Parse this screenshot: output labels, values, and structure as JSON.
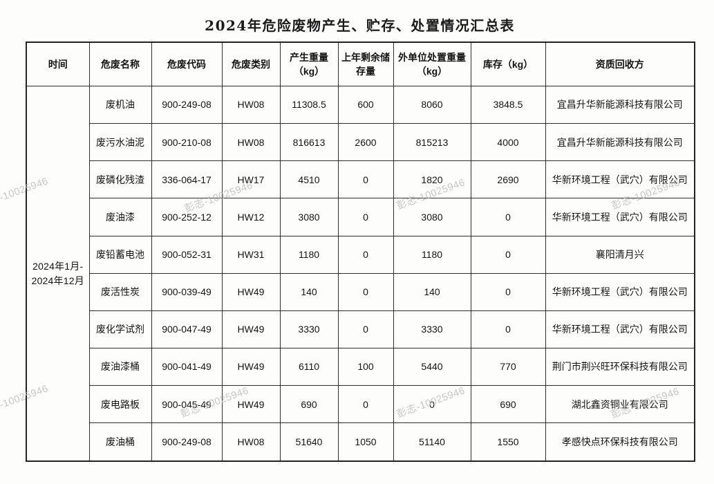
{
  "page": {
    "title": "2024年危险废物产生、贮存、处置情况汇总表",
    "watermark_text": "彭志-10025946"
  },
  "colors": {
    "background": "#fdfdfc",
    "border": "#2d2d2d",
    "text": "#141414",
    "watermark": "#b9b9b9"
  },
  "table": {
    "headers": [
      "时间",
      "危废名称",
      "危废代码",
      "危废类别",
      "产生重量\n（kg）",
      "上年剩余储存量",
      "外单位处置重量\n（kg）",
      "库存（kg）",
      "资质回收方"
    ],
    "time_period": "2024年1月-\n2024年12月",
    "rows": [
      {
        "name": "废机油",
        "code": "900-249-08",
        "category": "HW08",
        "produced": "11308.5",
        "prev_storage": "600",
        "disposed": "8060",
        "stock": "3848.5",
        "recycler": "宜昌升华新能源科技有限公司"
      },
      {
        "name": "废污水油泥",
        "code": "900-210-08",
        "category": "HW08",
        "produced": "816613",
        "prev_storage": "2600",
        "disposed": "815213",
        "stock": "4000",
        "recycler": "宜昌升华新能源科技有限公司"
      },
      {
        "name": "废磷化残渣",
        "code": "336-064-17",
        "category": "HW17",
        "produced": "4510",
        "prev_storage": "0",
        "disposed": "1820",
        "stock": "2690",
        "recycler": "华新环境工程（武穴）有限公司"
      },
      {
        "name": "废油漆",
        "code": "900-252-12",
        "category": "HW12",
        "produced": "3080",
        "prev_storage": "0",
        "disposed": "3080",
        "stock": "0",
        "recycler": "华新环境工程（武穴）有限公司"
      },
      {
        "name": "废铅蓄电池",
        "code": "900-052-31",
        "category": "HW31",
        "produced": "1180",
        "prev_storage": "0",
        "disposed": "1180",
        "stock": "0",
        "recycler": "襄阳清月兴"
      },
      {
        "name": "废活性炭",
        "code": "900-039-49",
        "category": "HW49",
        "produced": "140",
        "prev_storage": "0",
        "disposed": "140",
        "stock": "0",
        "recycler": "华新环境工程（武穴）有限公司"
      },
      {
        "name": "废化学试剂",
        "code": "900-047-49",
        "category": "HW49",
        "produced": "3330",
        "prev_storage": "0",
        "disposed": "3330",
        "stock": "0",
        "recycler": "华新环境工程（武穴）有限公司"
      },
      {
        "name": "废油漆桶",
        "code": "900-041-49",
        "category": "HW49",
        "produced": "6110",
        "prev_storage": "100",
        "disposed": "5440",
        "stock": "770",
        "recycler": "荆门市荆兴旺环保科技有限公司"
      },
      {
        "name": "废电路板",
        "code": "900-045-49",
        "category": "HW49",
        "produced": "690",
        "prev_storage": "0",
        "disposed": "0",
        "stock": "690",
        "recycler": "湖北鑫资铜业有限公司"
      },
      {
        "name": "废油桶",
        "code": "900-249-08",
        "category": "HW08",
        "produced": "51640",
        "prev_storage": "1050",
        "disposed": "51140",
        "stock": "1550",
        "recycler": "孝感快点环保科技有限公司"
      }
    ]
  }
}
